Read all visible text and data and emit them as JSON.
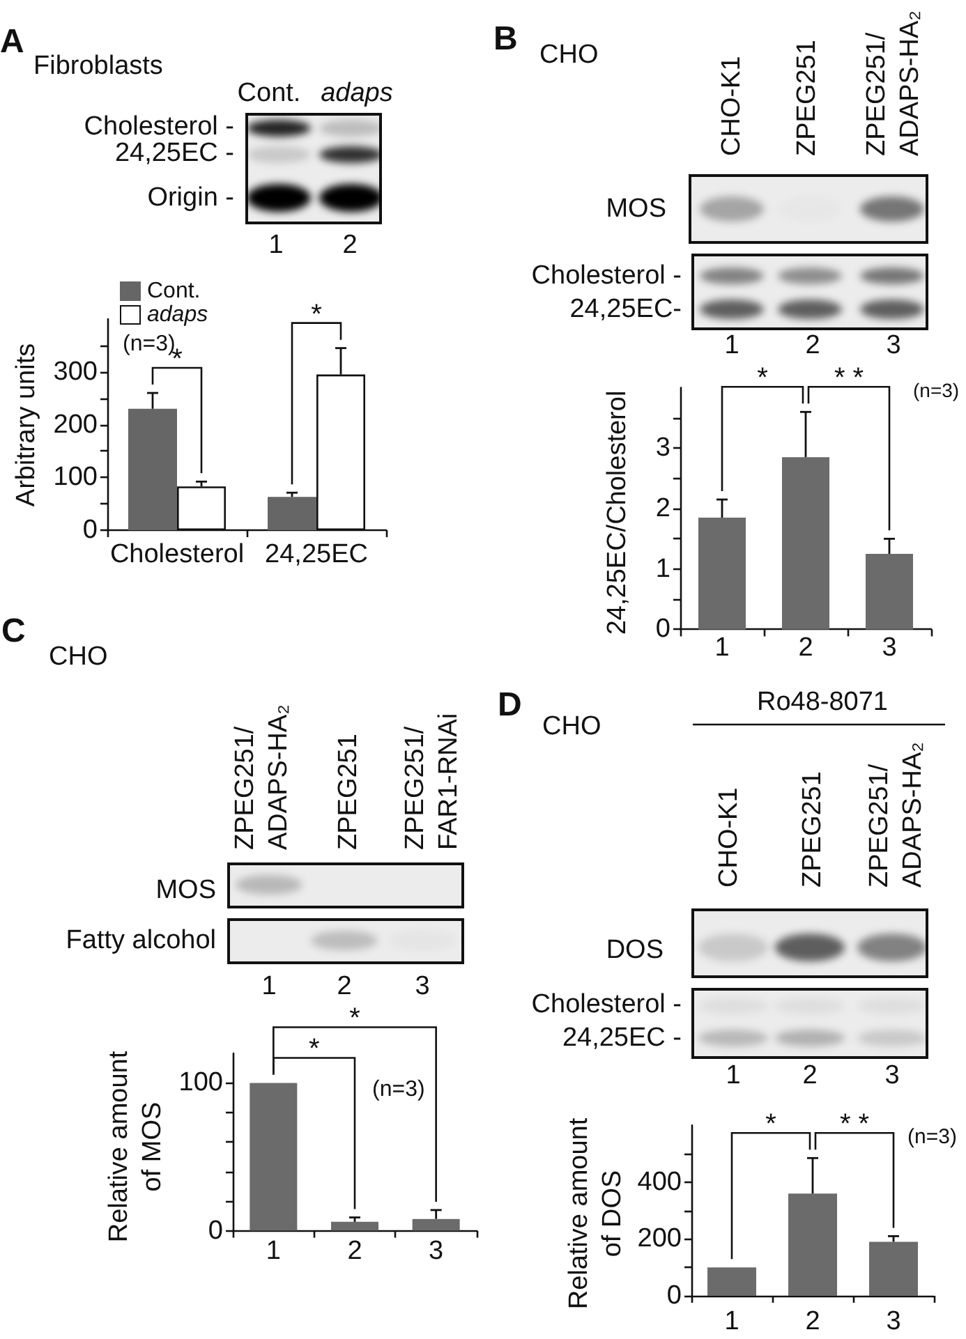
{
  "chart_data": [
    {
      "type": "bar",
      "title": "A",
      "subtitle": "Fibroblasts",
      "categories": [
        "Cholesterol",
        "24,25EC"
      ],
      "series": [
        {
          "name": "Cont.",
          "color": "#666666",
          "values": [
            230,
            63
          ],
          "errors": [
            [
              230,
              260
            ],
            [
              63,
              71
            ]
          ]
        },
        {
          "name": "adaps",
          "color": "#ffffff",
          "values": [
            83,
            295
          ],
          "errors": [
            [
              83,
              92
            ],
            [
              295,
              345
            ]
          ]
        }
      ],
      "ylabel": "Arbitrary units",
      "ylim": [
        0,
        400
      ],
      "yticks": [
        0,
        {
          "value": 50,
          "label": null
        },
        100,
        {
          "value": 150,
          "label": null
        },
        200,
        {
          "value": 250,
          "label": null
        },
        300,
        {
          "value": 350,
          "label": null
        }
      ],
      "legend": "top left",
      "annotations": [
        "Cont.",
        "adaps",
        "Cholesterol -",
        "24,25EC -",
        "Origin -",
        "1",
        "2",
        "(n=3)",
        "*",
        "*"
      ]
    },
    {
      "type": "bar",
      "title": "B",
      "subtitle": "CHO",
      "categories": [
        "1",
        "2",
        "3"
      ],
      "color": "#6b6b6b",
      "values": [
        1.85,
        2.85,
        1.25
      ],
      "errors": [
        [
          1.85,
          2.15
        ],
        [
          2.85,
          3.6
        ],
        [
          1.25,
          1.5
        ]
      ],
      "ylabel": "24,25EC/Cholesterol",
      "ylim": [
        0,
        4
      ],
      "yticks": [
        0,
        {
          "value": 0.5,
          "label": null
        },
        1,
        {
          "value": 1.5,
          "label": null
        },
        2,
        {
          "value": 2.5,
          "label": null
        },
        3,
        {
          "value": 3.5,
          "label": null
        }
      ],
      "annotations": [
        "CHO-K1",
        "ZPEG251",
        "ZPEG251/\nADAPS-HA₂",
        "MOS",
        "Cholesterol -",
        "24,25EC-",
        "1",
        "2",
        "3",
        "*",
        "* *",
        "(n=3)"
      ]
    },
    {
      "type": "bar",
      "title": "C",
      "subtitle": "CHO",
      "categories": [
        "1",
        "2",
        "3"
      ],
      "color": "#6b6b6b",
      "values": [
        100,
        6,
        8
      ],
      "errors": [
        null,
        [
          6,
          9
        ],
        [
          8,
          14
        ]
      ],
      "ylabel": "Relative amount\nof MOS",
      "ylim": [
        0,
        120
      ],
      "yticks": [
        0,
        {
          "value": 20,
          "label": null
        },
        {
          "value": 40,
          "label": null
        },
        {
          "value": 60,
          "label": null
        },
        {
          "value": 80,
          "label": null
        },
        100
      ],
      "annotations": [
        "ZPEG251/\nADAPS-HA₂",
        "ZPEG251",
        "ZPEG251/\nFAR1-RNAi",
        "MOS",
        "Fatty alcohol",
        "1",
        "2",
        "3",
        "*",
        "*",
        "(n=3)"
      ]
    },
    {
      "type": "bar",
      "title": "D",
      "subtitle": "CHO",
      "categories": [
        "1",
        "2",
        "3"
      ],
      "color": "#6b6b6b",
      "values": [
        100,
        360,
        190
      ],
      "errors": [
        null,
        [
          360,
          485
        ],
        [
          190,
          210
        ]
      ],
      "ylabel": "Relative amount\nof DOS",
      "ylim": [
        0,
        600
      ],
      "yticks": [
        0,
        {
          "value": 100,
          "label": null
        },
        200,
        {
          "value": 300,
          "label": null
        },
        400,
        {
          "value": 500,
          "label": null
        }
      ],
      "annotations": [
        "Ro48-8071",
        "CHO-K1",
        "ZPEG251",
        "ZPEG251/\nADAPS-HA₂",
        "DOS",
        "Cholesterol -",
        "24,25EC -",
        "1",
        "2",
        "3",
        "*",
        "* *",
        "(n=3)"
      ]
    }
  ]
}
